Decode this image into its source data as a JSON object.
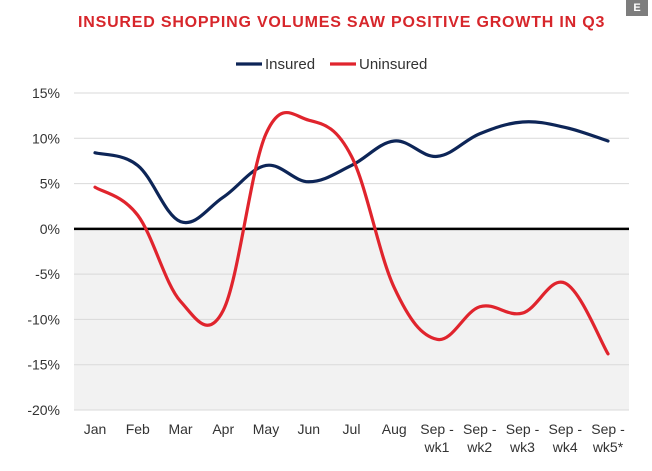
{
  "page": {
    "badge": "E"
  },
  "chart_data": {
    "type": "line",
    "title": "INSURED SHOPPING VOLUMES SAW POSITIVE GROWTH IN Q3",
    "xlabel": "",
    "ylabel": "",
    "ylim": [
      -20,
      15
    ],
    "yticks": [
      15,
      10,
      5,
      0,
      -5,
      -10,
      -15,
      -20
    ],
    "ytick_labels": [
      "15%",
      "10%",
      "5%",
      "0%",
      "-5%",
      "-10%",
      "-15%",
      "-20%"
    ],
    "categories": [
      [
        "Jan"
      ],
      [
        "Feb"
      ],
      [
        "Mar"
      ],
      [
        "Apr"
      ],
      [
        "May"
      ],
      [
        "Jun"
      ],
      [
        "Jul"
      ],
      [
        "Aug"
      ],
      [
        "Sep -",
        "wk1"
      ],
      [
        "Sep -",
        "wk2"
      ],
      [
        "Sep -",
        "wk3"
      ],
      [
        "Sep -",
        "wk4"
      ],
      [
        "Sep -",
        "wk5*"
      ]
    ],
    "series": [
      {
        "name": "Insured",
        "color": "#0d2557",
        "values": [
          8.4,
          7.0,
          0.8,
          3.5,
          7.0,
          5.2,
          7.0,
          9.7,
          8.0,
          10.5,
          11.8,
          11.2,
          9.7
        ]
      },
      {
        "name": "Uninsured",
        "color": "#e0242d",
        "values": [
          4.6,
          1.5,
          -8.0,
          -9.0,
          10.5,
          12.0,
          8.0,
          -6.5,
          -12.2,
          -8.6,
          -9.3,
          -6.0,
          -13.8
        ]
      }
    ],
    "legend": "top-center",
    "shade_negative": true,
    "zero_line": true
  }
}
